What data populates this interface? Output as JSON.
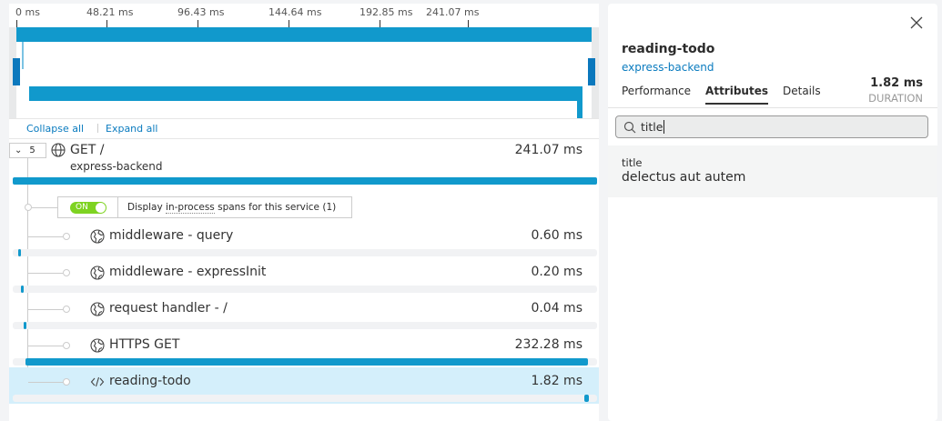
{
  "timeline": {
    "ticks": [
      "0 ms",
      "48.21 ms",
      "96.43 ms",
      "144.64 ms",
      "192.85 ms",
      "241.07 ms"
    ],
    "total_ms": 241.07
  },
  "controls": {
    "collapse_all": "Collapse all",
    "expand_all": "Expand all"
  },
  "root": {
    "count": "5",
    "name": "GET /",
    "service": "express-backend",
    "duration": "241.07 ms"
  },
  "toggle": {
    "state": "ON",
    "label_prefix": "Display ",
    "label_dotted": "in-process",
    "label_suffix": " spans for this service (1)"
  },
  "spans": [
    {
      "name": "middleware - query",
      "duration": "0.60 ms",
      "icon": "globe-icon",
      "start_ms": 2.2,
      "dur_ms": 0.6
    },
    {
      "name": "middleware - expressInit",
      "duration": "0.20 ms",
      "icon": "globe-icon",
      "start_ms": 3.3,
      "dur_ms": 0.2
    },
    {
      "name": "request handler - /",
      "duration": "0.04 ms",
      "icon": "globe-icon",
      "start_ms": 4.4,
      "dur_ms": 0.04
    },
    {
      "name": "HTTPS GET",
      "duration": "232.28 ms",
      "icon": "globe-icon",
      "start_ms": 5.2,
      "dur_ms": 232.28
    },
    {
      "name": "reading-todo",
      "duration": "1.82 ms",
      "icon": "code-icon",
      "start_ms": 236.0,
      "dur_ms": 1.82,
      "selected": true
    }
  ],
  "detail": {
    "title": "reading-todo",
    "service": "express-backend",
    "duration": "1.82 ms",
    "duration_label": "DURATION",
    "tabs": [
      {
        "label": "Performance"
      },
      {
        "label": "Attributes",
        "active": true
      },
      {
        "label": "Details"
      }
    ],
    "search_value": "title",
    "attributes": [
      {
        "key": "title",
        "value": "delectus aut autem"
      }
    ]
  },
  "colors": {
    "accent": "#1199cc",
    "selected_row": "#d4effb",
    "link": "#0a7bbf",
    "toggle_on": "#7ed321"
  }
}
